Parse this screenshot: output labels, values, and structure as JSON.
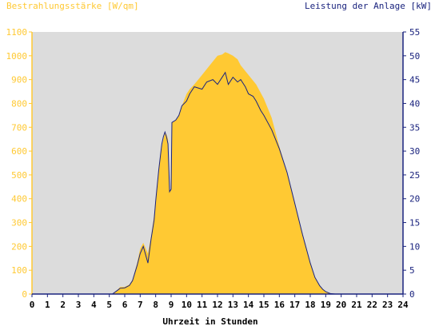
{
  "chart_data": {
    "type": "area",
    "left_axis_title": "Bestrahlungsstärke [W/qm]",
    "right_axis_title": "Leistung der Anlage [kW]",
    "xlabel": "Uhrzeit in Stunden",
    "x_ticks": [
      "0",
      "1",
      "2",
      "3",
      "4",
      "5",
      "6",
      "7",
      "8",
      "9",
      "10",
      "11",
      "12",
      "13",
      "14",
      "15",
      "16",
      "17",
      "18",
      "19",
      "20",
      "21",
      "22",
      "23",
      "24"
    ],
    "xlim": [
      0,
      24
    ],
    "left_ylim": [
      0,
      1100
    ],
    "left_ticks": [
      "0",
      "100",
      "200",
      "300",
      "400",
      "500",
      "600",
      "700",
      "800",
      "900",
      "1000",
      "1100"
    ],
    "right_ylim": [
      0,
      55
    ],
    "right_ticks": [
      "0",
      "5",
      "10",
      "15",
      "20",
      "25",
      "30",
      "35",
      "40",
      "45",
      "50",
      "55"
    ],
    "grid": false,
    "colors": {
      "irradiance_fill": "#FFC933",
      "power_line": "#1A237E",
      "plot_background": "#DCDCDC",
      "left_axis_text": "#FFC933",
      "right_axis_text": "#1A237E"
    },
    "series": [
      {
        "axis": "left",
        "style": "area",
        "x": [
          0,
          5.2,
          5.5,
          5.7,
          6.0,
          6.3,
          6.5,
          6.8,
          7.0,
          7.2,
          7.5,
          7.7,
          7.9,
          8.0,
          8.2,
          8.4,
          8.5,
          8.6,
          8.7,
          8.8,
          8.9,
          9.0,
          9.05,
          9.3,
          9.5,
          9.7,
          10.0,
          10.2,
          10.5,
          11.0,
          11.5,
          12.0,
          12.3,
          12.5,
          12.7,
          13.0,
          13.3,
          13.5,
          14.0,
          14.5,
          15.0,
          15.5,
          16.0,
          16.5,
          17.0,
          17.5,
          18.0,
          18.3,
          18.6,
          18.8,
          19.0,
          19.3,
          19.6,
          20.0,
          24
        ],
        "y": [
          0,
          0,
          15,
          30,
          30,
          40,
          60,
          130,
          190,
          215,
          170,
          240,
          330,
          400,
          520,
          620,
          650,
          675,
          670,
          650,
          430,
          440,
          720,
          730,
          750,
          790,
          840,
          860,
          880,
          920,
          960,
          1000,
          1005,
          1015,
          1010,
          1000,
          985,
          960,
          920,
          880,
          820,
          740,
          620,
          510,
          380,
          250,
          130,
          70,
          35,
          20,
          10,
          3,
          0,
          0,
          0
        ]
      },
      {
        "axis": "right",
        "style": "line",
        "x": [
          0,
          5.2,
          5.5,
          5.7,
          6.0,
          6.3,
          6.5,
          6.8,
          7.0,
          7.2,
          7.5,
          7.7,
          7.9,
          8.0,
          8.2,
          8.4,
          8.5,
          8.6,
          8.7,
          8.8,
          8.9,
          9.0,
          9.05,
          9.3,
          9.5,
          9.7,
          10.0,
          10.2,
          10.5,
          11.0,
          11.3,
          11.7,
          12.0,
          12.3,
          12.5,
          12.7,
          13.0,
          13.3,
          13.5,
          13.8,
          14.0,
          14.3,
          14.5,
          14.8,
          15.0,
          15.5,
          16.0,
          16.5,
          17.0,
          17.5,
          18.0,
          18.3,
          18.6,
          18.8,
          19.0,
          19.3,
          19.6,
          20.0,
          24
        ],
        "y": [
          0,
          0,
          0.7,
          1.2,
          1.3,
          1.8,
          2.8,
          6,
          8.5,
          10,
          6.5,
          11.5,
          15.5,
          19.5,
          26,
          31.5,
          33,
          34,
          33,
          31.5,
          21.5,
          22,
          36,
          36.5,
          37.5,
          39.5,
          40.5,
          42,
          43.5,
          43,
          44.5,
          45,
          44,
          45.5,
          46.5,
          44,
          45.5,
          44.5,
          45,
          43.5,
          42,
          41.5,
          40.5,
          38.5,
          37.5,
          34.5,
          30.5,
          25.5,
          19,
          12.5,
          6.5,
          3.5,
          1.8,
          1.0,
          0.5,
          0.1,
          0,
          0,
          0
        ]
      }
    ]
  }
}
